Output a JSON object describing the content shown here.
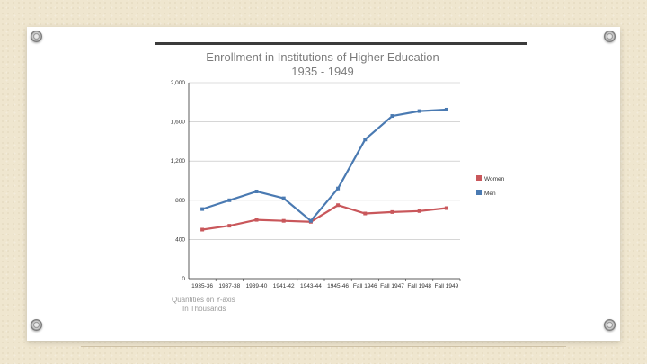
{
  "chart_data": {
    "type": "line",
    "title": "Enrollment in Institutions of Higher Education",
    "subtitle": "1935 - 1949",
    "categories": [
      "1935-36",
      "1937-38",
      "1939-40",
      "1941-42",
      "1943-44",
      "1945-46",
      "Fall 1946",
      "Fall 1947",
      "Fall 1948",
      "Fall 1949"
    ],
    "series": [
      {
        "name": "Women",
        "color": "#c9575b",
        "values": [
          500,
          540,
          600,
          590,
          580,
          750,
          665,
          680,
          690,
          720
        ]
      },
      {
        "name": "Men",
        "color": "#4a7ab2",
        "values": [
          710,
          800,
          890,
          820,
          590,
          920,
          1420,
          1660,
          1710,
          1725
        ]
      }
    ],
    "ylim": [
      0,
      2000
    ],
    "yticks": [
      0,
      400,
      800,
      1200,
      1600,
      2000
    ],
    "ytick_labels": [
      "0",
      "400",
      "800",
      "1,200",
      "1,600",
      "2,000"
    ],
    "grid": "horizontal",
    "legend_position": "right",
    "note_lines": [
      "Quantities on Y-axis",
      "In Thousands"
    ]
  }
}
